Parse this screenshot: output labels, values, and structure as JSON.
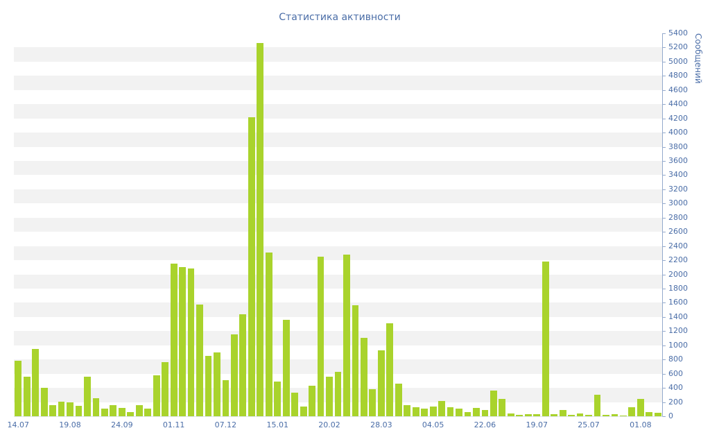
{
  "chart_data": {
    "type": "bar",
    "title": "Статистика активности",
    "ylabel": "Сообщений",
    "xlabel": "",
    "ylim": [
      0,
      5400
    ],
    "ytick_step": 200,
    "grid": "striped-bands",
    "legend": "none",
    "bar_color": "#a9d32c",
    "stripe_color": "#f2f2f2",
    "text_color": "#4a6da7",
    "axis_color": "#93a9cc",
    "x_axis_labels": [
      "14.07",
      "19.08",
      "24.09",
      "01.11",
      "07.12",
      "15.01",
      "20.02",
      "28.03",
      "04.05",
      "22.06",
      "19.07",
      "25.07",
      "01.08"
    ],
    "label_every": 6,
    "values": [
      780,
      560,
      950,
      400,
      160,
      210,
      200,
      150,
      560,
      250,
      110,
      160,
      120,
      60,
      160,
      110,
      580,
      760,
      2150,
      2100,
      2080,
      1580,
      850,
      900,
      510,
      1150,
      1440,
      4220,
      5260,
      2310,
      490,
      1360,
      330,
      140,
      430,
      2250,
      560,
      630,
      2280,
      1570,
      1110,
      380,
      930,
      1310,
      460,
      160,
      130,
      110,
      140,
      220,
      130,
      110,
      60,
      120,
      90,
      360,
      240,
      40,
      20,
      30,
      30,
      2180,
      30,
      90,
      20,
      40,
      20,
      300,
      15,
      25,
      10,
      130,
      240,
      60,
      45
    ]
  }
}
